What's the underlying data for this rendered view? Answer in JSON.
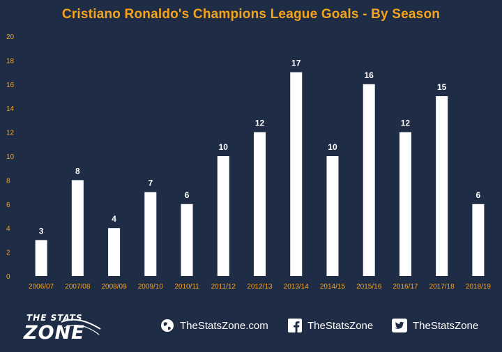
{
  "title": "Cristiano Ronaldo's Champions League Goals - By Season",
  "chart_data": {
    "type": "bar",
    "title": "Cristiano Ronaldo's Champions League Goals - By Season",
    "categories": [
      "2006/07",
      "2007/08",
      "2008/09",
      "2009/10",
      "2010/11",
      "2011/12",
      "2012/13",
      "2013/14",
      "2014/15",
      "2015/16",
      "2016/17",
      "2017/18",
      "2018/19"
    ],
    "values": [
      3,
      8,
      4,
      7,
      6,
      10,
      12,
      17,
      10,
      16,
      12,
      15,
      6
    ],
    "data_labels": [
      "3",
      "8",
      "4",
      "7",
      "6",
      "10",
      "12",
      "17",
      "10",
      "16",
      "12",
      "15",
      "6"
    ],
    "yticks": [
      "0",
      "2",
      "4",
      "6",
      "8",
      "10",
      "12",
      "14",
      "16",
      "18",
      "20"
    ],
    "ylim": [
      0,
      20
    ],
    "xlabel": "",
    "ylabel": "",
    "grid": false,
    "legend": "none",
    "bar_color": "#ffffff",
    "background_color": "#1f2c45",
    "tick_color": "#f4a41c"
  },
  "footer": {
    "brand_line1": "THE STATS",
    "brand_line2": "ZONE",
    "website": "TheStatsZone.com",
    "facebook": "TheStatsZone",
    "twitter": "TheStatsZone"
  }
}
